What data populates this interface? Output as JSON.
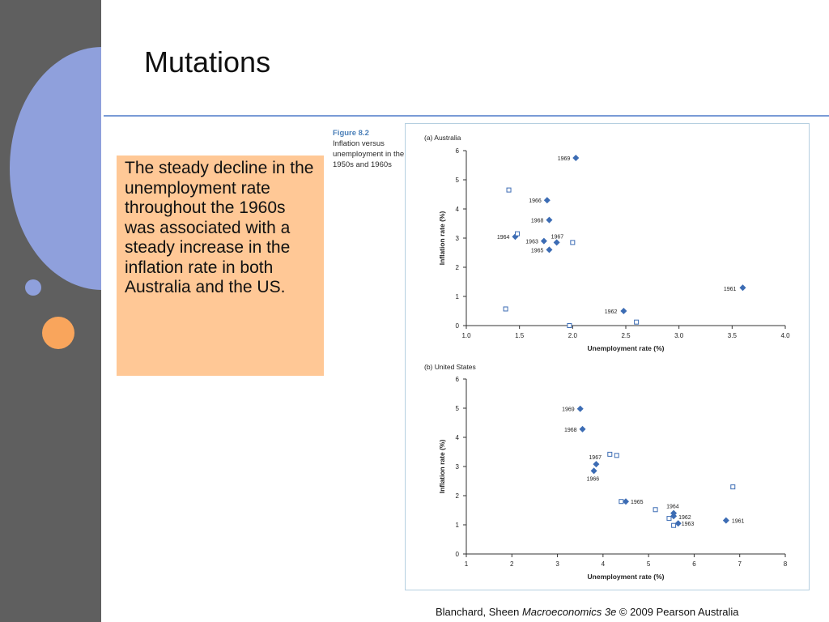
{
  "slide": {
    "title": "Mutations",
    "callout": "The steady decline in the unemployment rate throughout the 1960s was associated with a steady increase in the inflation rate in both Australia and the US.",
    "figure_label": "Figure 8.2",
    "figure_caption": "Inflation versus unemployment in the 1950s and 1960s",
    "footer_authors": "Blanchard, Sheen ",
    "footer_book": "Macroeconomics 3e",
    "footer_rest": " © 2009 Pearson Australia"
  },
  "colors": {
    "sidebar": "#5f5f5f",
    "accent_blue": "#8fa0dc",
    "accent_orange": "#f9a55c",
    "callout_bg": "#ffc896",
    "marker": "#3c6cb4",
    "rule": "#7a9bd6"
  },
  "chart_data": [
    {
      "type": "scatter",
      "title": "(a) Australia",
      "xlabel": "Unemployment rate (%)",
      "ylabel": "Inflation rate (%)",
      "xlim": [
        1.0,
        4.0
      ],
      "ylim": [
        0,
        6
      ],
      "xticks": [
        "1.0",
        "1.5",
        "2.0",
        "2.5",
        "3.0",
        "3.5",
        "4.0"
      ],
      "yticks": [
        "0",
        "1",
        "2",
        "3",
        "4",
        "5",
        "6"
      ],
      "series": [
        {
          "marker": "diamond",
          "points": [
            {
              "label": "1961",
              "x": 3.6,
              "y": 1.3
            },
            {
              "label": "1962",
              "x": 2.48,
              "y": 0.5
            },
            {
              "label": "1963",
              "x": 1.73,
              "y": 2.9
            },
            {
              "label": "1964",
              "x": 1.46,
              "y": 3.05
            },
            {
              "label": "1965",
              "x": 1.78,
              "y": 2.6
            },
            {
              "label": "1966",
              "x": 1.76,
              "y": 4.3
            },
            {
              "label": "1967",
              "x": 1.85,
              "y": 2.85
            },
            {
              "label": "1968",
              "x": 1.78,
              "y": 3.62
            },
            {
              "label": "1969",
              "x": 2.03,
              "y": 5.75
            }
          ]
        },
        {
          "marker": "hollow-square",
          "points": [
            {
              "x": 1.4,
              "y": 4.65
            },
            {
              "x": 1.48,
              "y": 3.15
            },
            {
              "x": 2.0,
              "y": 2.85
            },
            {
              "x": 1.37,
              "y": 0.57
            },
            {
              "x": 1.97,
              "y": 0.0
            },
            {
              "x": 2.6,
              "y": 0.12
            }
          ]
        }
      ],
      "grid": false,
      "legend": "none"
    },
    {
      "type": "scatter",
      "title": "(b) United States",
      "xlabel": "Unemployment rate (%)",
      "ylabel": "Inflation rate (%)",
      "xlim": [
        1,
        8
      ],
      "ylim": [
        0,
        6
      ],
      "xticks": [
        "1",
        "2",
        "3",
        "4",
        "5",
        "6",
        "7",
        "8"
      ],
      "yticks": [
        "0",
        "1",
        "2",
        "3",
        "4",
        "5",
        "6"
      ],
      "series": [
        {
          "marker": "diamond",
          "points": [
            {
              "label": "1961",
              "x": 6.7,
              "y": 1.15
            },
            {
              "label": "1962",
              "x": 5.55,
              "y": 1.3
            },
            {
              "label": "1963",
              "x": 5.65,
              "y": 1.05
            },
            {
              "label": "1964",
              "x": 5.55,
              "y": 1.4
            },
            {
              "label": "1965",
              "x": 4.5,
              "y": 1.8
            },
            {
              "label": "1966",
              "x": 3.8,
              "y": 2.85
            },
            {
              "label": "1967",
              "x": 3.85,
              "y": 3.08
            },
            {
              "label": "1968",
              "x": 3.55,
              "y": 4.28
            },
            {
              "label": "1969",
              "x": 3.5,
              "y": 4.98
            }
          ]
        },
        {
          "marker": "hollow-square",
          "points": [
            {
              "x": 4.15,
              "y": 3.42
            },
            {
              "x": 4.3,
              "y": 3.38
            },
            {
              "x": 4.4,
              "y": 1.8
            },
            {
              "x": 5.15,
              "y": 1.52
            },
            {
              "x": 5.45,
              "y": 1.22
            },
            {
              "x": 5.55,
              "y": 0.98
            },
            {
              "x": 6.85,
              "y": 2.3
            }
          ]
        }
      ],
      "grid": false,
      "legend": "none"
    }
  ]
}
